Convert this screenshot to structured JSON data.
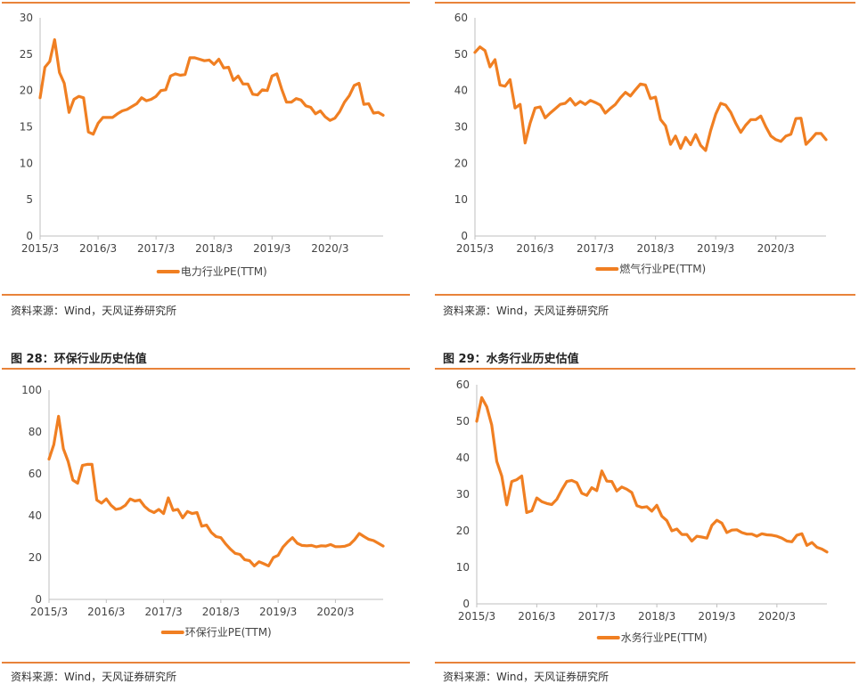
{
  "figures": [
    {
      "title": "",
      "source": "资料来源：Wind，天风证券研究所"
    },
    {
      "title": "",
      "source": "资料来源：Wind，天风证券研究所"
    },
    {
      "title": "图 28：环保行业历史估值",
      "source": "资料来源：Wind，天风证券研究所"
    },
    {
      "title": "图 29：水务行业历史估值",
      "source": "资料来源：Wind，天风证券研究所"
    }
  ],
  "colors": {
    "line": "#f07f22",
    "axis": "#bfbfbf",
    "rule": "#e8833a"
  },
  "chart_data": [
    {
      "type": "line",
      "x_ticks": [
        "2015/3",
        "2016/3",
        "2017/3",
        "2018/3",
        "2019/3",
        "2020/3"
      ],
      "ylim": [
        0,
        30
      ],
      "y_ticks": [
        "0",
        "5",
        "10",
        "15",
        "20",
        "25",
        "30"
      ],
      "grid": false,
      "legend": "bottom-center",
      "series": [
        {
          "name": "电力行业PE(TTM)",
          "values": [
            19,
            23.2,
            24,
            27,
            22.5,
            21,
            17,
            18.8,
            19.2,
            19,
            14.3,
            14,
            15.5,
            16.3,
            16.3,
            16.3,
            16.8,
            17.2,
            17.4,
            17.8,
            18.2,
            19,
            18.6,
            18.8,
            19.2,
            20,
            20.1,
            22,
            22.3,
            22.1,
            22.2,
            24.5,
            24.5,
            24.3,
            24.1,
            24.2,
            23.6,
            24.3,
            23.1,
            23.2,
            21.4,
            22,
            20.9,
            20.9,
            19.5,
            19.4,
            20.1,
            20,
            22,
            22.3,
            20.2,
            18.4,
            18.4,
            18.9,
            18.7,
            17.9,
            17.7,
            16.8,
            17.2,
            16.4,
            15.9,
            16.2,
            17.1,
            18.4,
            19.3,
            20.7,
            21,
            18.1,
            18.2,
            16.9,
            17,
            16.6
          ]
        }
      ]
    },
    {
      "type": "line",
      "x_ticks": [
        "2015/3",
        "2016/3",
        "2017/3",
        "2018/3",
        "2019/3",
        "2020/3"
      ],
      "ylim": [
        0,
        60
      ],
      "y_ticks": [
        "0",
        "10",
        "20",
        "30",
        "40",
        "50",
        "60"
      ],
      "grid": false,
      "legend": "bottom-center",
      "series": [
        {
          "name": "燃气行业PE(TTM)",
          "values": [
            50.5,
            52,
            51,
            46.5,
            48.5,
            41.5,
            41.2,
            43,
            35.2,
            36.2,
            25.6,
            31,
            35.2,
            35.5,
            32.5,
            33.8,
            35,
            36.2,
            36.5,
            37.8,
            36,
            37,
            36.2,
            37.3,
            36.7,
            36,
            33.8,
            35.1,
            36.2,
            38,
            39.5,
            38.5,
            40.2,
            41.8,
            41.5,
            37.8,
            38.2,
            32,
            30.3,
            25.2,
            27.5,
            24.1,
            27.1,
            25.1,
            27.9,
            24.9,
            23.5,
            29,
            33.5,
            36.5,
            36,
            34,
            31,
            28.5,
            30.5,
            32,
            32,
            33,
            30,
            27.5,
            26.5,
            26,
            27.5,
            28,
            32.3,
            32.4,
            25.2,
            26.6,
            28.2,
            28.2,
            26.5
          ]
        }
      ]
    },
    {
      "type": "line",
      "x_ticks": [
        "2015/3",
        "2016/3",
        "2017/3",
        "2018/3",
        "2019/3",
        "2020/3"
      ],
      "ylim": [
        0,
        100
      ],
      "y_ticks": [
        "0",
        "20",
        "40",
        "60",
        "80",
        "100"
      ],
      "grid": false,
      "legend": "bottom-center",
      "series": [
        {
          "name": "环保行业PE(TTM)",
          "values": [
            67,
            74,
            87.5,
            72,
            66,
            57,
            55.5,
            64,
            64.5,
            64.5,
            47.5,
            46,
            48,
            45,
            43,
            43.5,
            45,
            48,
            47,
            47.5,
            44.5,
            42.5,
            41.5,
            43,
            41,
            48.5,
            42.5,
            43,
            39,
            42,
            41,
            41.5,
            35,
            35.5,
            32,
            30,
            29.5,
            26.5,
            24,
            22,
            21.5,
            19,
            18.5,
            16,
            18,
            17,
            16,
            20,
            21,
            25,
            27.5,
            29.5,
            26.8,
            25.8,
            25.6,
            25.8,
            25.1,
            25.6,
            25.5,
            26.2,
            25.2,
            25.2,
            25.4,
            26.2,
            28.5,
            31.5,
            30,
            28.7,
            28.1,
            26.8,
            25.5
          ]
        }
      ]
    },
    {
      "type": "line",
      "x_ticks": [
        "2015/3",
        "2016/3",
        "2017/3",
        "2018/3",
        "2019/3",
        "2020/3"
      ],
      "ylim": [
        0,
        60
      ],
      "y_ticks": [
        "0",
        "10",
        "20",
        "30",
        "40",
        "50",
        "60"
      ],
      "grid": false,
      "legend": "bottom-center",
      "series": [
        {
          "name": "水务行业PE(TTM)",
          "values": [
            50,
            56.5,
            54,
            49,
            39,
            35,
            27.1,
            33.5,
            34,
            35,
            25,
            25.5,
            29,
            28,
            27.5,
            27.2,
            28.6,
            31.2,
            33.5,
            33.8,
            33.2,
            30.3,
            29.7,
            31.8,
            31,
            36.4,
            33.6,
            33.5,
            30.9,
            32,
            31.4,
            30.5,
            26.9,
            26.4,
            26.6,
            25.4,
            27,
            24,
            22.8,
            20,
            20.5,
            19,
            19,
            17.2,
            18.5,
            18.3,
            18,
            21.5,
            22.9,
            22.1,
            19.5,
            20.2,
            20.3,
            19.5,
            19.1,
            19.1,
            18.5,
            19.2,
            18.9,
            18.8,
            18.5,
            18,
            17.2,
            17,
            18.8,
            19.2,
            16,
            16.8,
            15.5,
            15,
            14.2
          ]
        }
      ]
    }
  ]
}
